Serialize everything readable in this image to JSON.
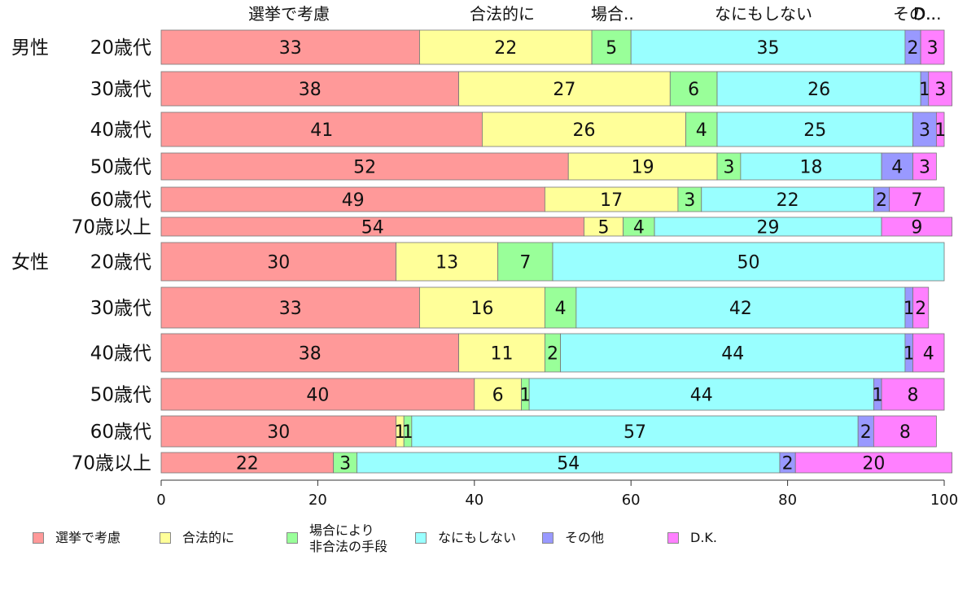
{
  "chart_data": {
    "type": "bar",
    "orientation": "horizontal",
    "stacked": true,
    "groups": [
      "男性",
      "女性"
    ],
    "categories": [
      "20歳代",
      "30歳代",
      "40歳代",
      "50歳代",
      "60歳代",
      "70歳以上",
      "20歳代",
      "30歳代",
      "40歳代",
      "50歳代",
      "60歳代",
      "70歳以上"
    ],
    "series": [
      {
        "name": "選挙で考慮",
        "header": "選挙で考慮",
        "color": "#ff9999",
        "values": [
          33,
          38,
          41,
          52,
          49,
          54,
          30,
          33,
          38,
          40,
          30,
          22
        ]
      },
      {
        "name": "合法的に",
        "header": "合法的に",
        "color": "#ffff99",
        "values": [
          22,
          27,
          26,
          19,
          17,
          5,
          13,
          16,
          11,
          6,
          1,
          0
        ]
      },
      {
        "name": "場合により\n非合法の手段",
        "header": "場合..",
        "color": "#99ff99",
        "values": [
          5,
          6,
          4,
          3,
          3,
          4,
          7,
          4,
          2,
          1,
          1,
          3
        ]
      },
      {
        "name": "なにもしない",
        "header": "なにもしない",
        "color": "#99ffff",
        "values": [
          35,
          26,
          25,
          18,
          22,
          29,
          50,
          42,
          44,
          44,
          57,
          54
        ]
      },
      {
        "name": "その他",
        "header": "その..",
        "color": "#9999ff",
        "values": [
          2,
          1,
          3,
          4,
          2,
          0,
          0,
          1,
          1,
          1,
          2,
          2
        ]
      },
      {
        "name": "D.K.",
        "header": "D...",
        "color": "#ff80ff",
        "values": [
          3,
          3,
          1,
          3,
          7,
          9,
          0,
          2,
          4,
          8,
          8,
          20
        ]
      }
    ],
    "xlim": [
      0,
      100
    ],
    "xticks": [
      0,
      20,
      40,
      60,
      80,
      100
    ],
    "legend_position": "bottom"
  }
}
